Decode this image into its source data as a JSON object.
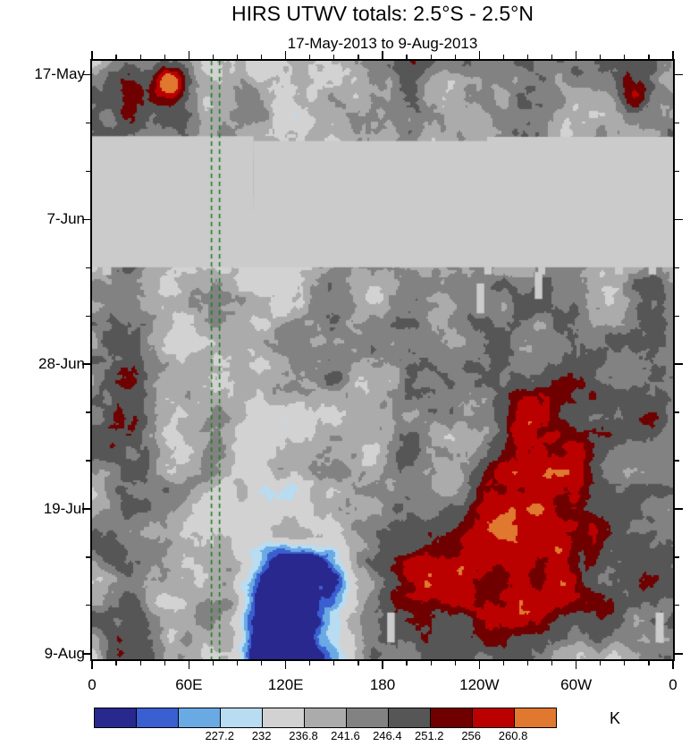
{
  "page": {
    "title": "HIRS UTWV totals: 2.5°S - 2.5°N",
    "subtitle": "17-May-2013 to 9-Aug-2013"
  },
  "chart_data": {
    "type": "heatmap",
    "title": "HIRS UTWV totals: 2.5°S - 2.5°N",
    "subtitle": "17-May-2013 to 9-Aug-2013",
    "x_axis": {
      "tick_labels": [
        "0",
        "60E",
        "120E",
        "180",
        "120W",
        "60W",
        "0"
      ],
      "tick_longitudes_deg": [
        0,
        60,
        120,
        180,
        240,
        300,
        360
      ],
      "minor_tick_step_deg": 15,
      "range_deg": [
        0,
        360
      ]
    },
    "y_axis": {
      "tick_labels": [
        "17-May",
        "7-Jun",
        "28-Jun",
        "19-Jul",
        "9-Aug"
      ],
      "tick_day_offsets": [
        0,
        21,
        42,
        63,
        84
      ],
      "minor_tick_step_days": 7,
      "range": [
        "17-May-2013",
        "9-Aug-2013"
      ],
      "direction": "time-increases-downward"
    },
    "colorbar": {
      "unit": "K",
      "boundary_labels": [
        "227.2",
        "232",
        "236.8",
        "241.6",
        "246.4",
        "251.2",
        "256",
        "260.8"
      ],
      "boundary_values": [
        227.2,
        232,
        236.8,
        241.6,
        246.4,
        251.2,
        256,
        260.8
      ],
      "colors": [
        "#28288f",
        "#3a5fd0",
        "#6aaae4",
        "#b8dcf2",
        "#d2d2d2",
        "#ababab",
        "#828282",
        "#565656",
        "#700000",
        "#bb0000",
        "#e07830"
      ],
      "labeled_boundary_indices": [
        3,
        4,
        5,
        6,
        7,
        8,
        9,
        10
      ]
    },
    "missing_data_band": {
      "description": "light-gray band of missing data spanning all longitudes, late May to mid June",
      "color": "#cbcbcb",
      "time_frac_start": 0.126,
      "time_frac_end": 0.345
    },
    "reference_lines": {
      "style": "vertical dashed",
      "color": "#1f7d22",
      "longitudes_deg": [
        74,
        79
      ]
    },
    "field": {
      "low_values": "blue patches (moist/convective, low brightness temperature) concentrated near 60E-150E in lower two-thirds",
      "high_values": "dark red blobs (dry, high brightness temperature) concentrated 180-60W",
      "background": "mottled grayscale"
    }
  }
}
